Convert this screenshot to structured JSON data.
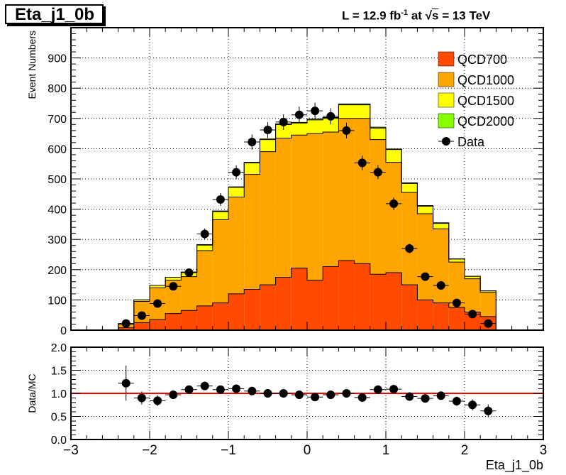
{
  "title": "Eta_j1_0b",
  "lumi": {
    "prefix": "L = 12.9 fb",
    "sup": "-1",
    "mid": " at  ",
    "sqrt": "s",
    "suffix": " = 13 TeV"
  },
  "chart_data": [
    {
      "type": "bar",
      "subtype": "stacked-histogram",
      "ylabel": "Event Numbers",
      "xlim": [
        -3,
        3
      ],
      "ylim": [
        0,
        1000
      ],
      "yticks": [
        0,
        100,
        200,
        300,
        400,
        500,
        600,
        700,
        800,
        900
      ],
      "grid": true,
      "legend_position": "top-right",
      "bin_edges": [
        -2.4,
        -2.2,
        -2.0,
        -1.8,
        -1.6,
        -1.4,
        -1.2,
        -1.0,
        -0.8,
        -0.6,
        -0.4,
        -0.2,
        0.0,
        0.2,
        0.4,
        0.6,
        0.8,
        1.0,
        1.2,
        1.4,
        1.6,
        1.8,
        2.0,
        2.2,
        2.4
      ],
      "series": [
        {
          "name": "QCD700",
          "color": "#ff4a00",
          "values": [
            8,
            25,
            35,
            55,
            65,
            80,
            90,
            120,
            135,
            150,
            175,
            205,
            165,
            210,
            230,
            220,
            185,
            190,
            150,
            100,
            90,
            75,
            60,
            45
          ]
        },
        {
          "name": "QCD1000",
          "color": "#ffa500",
          "values": [
            12,
            70,
            105,
            110,
            112,
            183,
            275,
            320,
            380,
            440,
            460,
            440,
            485,
            445,
            470,
            480,
            445,
            365,
            305,
            285,
            245,
            150,
            110,
            80
          ]
        },
        {
          "name": "QCD1500",
          "color": "#ffff00",
          "values": [
            1,
            5,
            8,
            10,
            15,
            18,
            27,
            32,
            38,
            40,
            45,
            40,
            45,
            45,
            45,
            45,
            38,
            42,
            30,
            25,
            18,
            10,
            8,
            5
          ]
        },
        {
          "name": "QCD2000",
          "color": "#88ff00",
          "values": [
            0,
            0,
            0,
            0,
            0,
            2,
            2,
            2,
            2,
            2,
            2,
            2,
            3,
            3,
            3,
            3,
            3,
            2,
            2,
            2,
            2,
            1,
            0,
            0
          ]
        }
      ],
      "data": {
        "name": "Data",
        "x": [
          -2.3,
          -2.1,
          -1.9,
          -1.7,
          -1.5,
          -1.3,
          -1.1,
          -0.9,
          -0.7,
          -0.5,
          -0.3,
          -0.1,
          0.1,
          0.3,
          0.5,
          0.7,
          0.9,
          1.1,
          1.3,
          1.5,
          1.7,
          1.9,
          2.1,
          2.3
        ],
        "y": [
          22,
          48,
          88,
          145,
          190,
          318,
          432,
          522,
          622,
          662,
          688,
          712,
          725,
          707,
          660,
          553,
          522,
          418,
          270,
          177,
          148,
          90,
          53,
          22
        ],
        "yerr": [
          5,
          7,
          10,
          12,
          14,
          18,
          21,
          23,
          25,
          26,
          26,
          27,
          27,
          27,
          26,
          24,
          23,
          21,
          16,
          13,
          12,
          10,
          7,
          5
        ]
      }
    },
    {
      "type": "scatter",
      "xlabel": "Eta_j1_0b",
      "ylabel": "Data/MC",
      "xlim": [
        -3,
        3
      ],
      "ylim": [
        0,
        2
      ],
      "xticks": [
        -3,
        -2,
        -1,
        0,
        1,
        2,
        3
      ],
      "yticks": [
        0.0,
        0.5,
        1.0,
        1.5,
        2.0
      ],
      "ytick_labels": [
        "0.0",
        "0.5",
        "1.0",
        "1.5",
        "2.0"
      ],
      "grid": true,
      "reference_line": {
        "y": 1.0,
        "color": "#ff0000"
      },
      "x": [
        -2.3,
        -2.1,
        -1.9,
        -1.7,
        -1.5,
        -1.3,
        -1.1,
        -0.9,
        -0.7,
        -0.5,
        -0.3,
        -0.1,
        0.1,
        0.3,
        0.5,
        0.7,
        0.9,
        1.1,
        1.3,
        1.5,
        1.7,
        1.9,
        2.1,
        2.3
      ],
      "y": [
        1.22,
        0.9,
        0.84,
        0.97,
        1.08,
        1.16,
        1.08,
        1.1,
        1.05,
        1.0,
        1.0,
        0.97,
        0.92,
        0.97,
        1.0,
        0.91,
        1.08,
        1.09,
        0.93,
        0.89,
        0.95,
        0.83,
        0.75,
        0.62
      ],
      "yerr": [
        0.38,
        0.14,
        0.12,
        0.09,
        0.08,
        0.07,
        0.06,
        0.05,
        0.05,
        0.04,
        0.04,
        0.04,
        0.04,
        0.04,
        0.04,
        0.05,
        0.05,
        0.06,
        0.06,
        0.07,
        0.08,
        0.1,
        0.12,
        0.14
      ]
    }
  ]
}
